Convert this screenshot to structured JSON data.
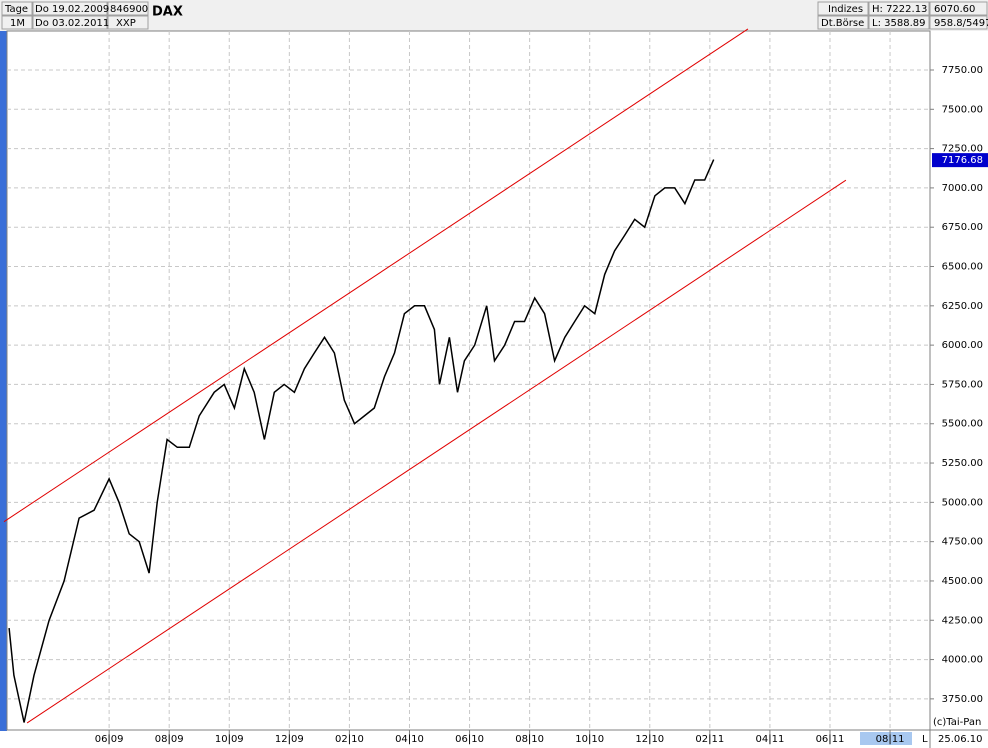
{
  "header": {
    "left": [
      "Tage",
      "1M"
    ],
    "dates": [
      "Do 19.02.2009",
      "Do 03.02.2011"
    ],
    "codes": [
      "846900",
      "XXP"
    ],
    "name": "DAX",
    "right": [
      "Indizes",
      "Dt.Börse"
    ],
    "hl": [
      "H: 7222.13",
      "L: 3588.89"
    ],
    "extra": [
      "6070.60",
      "958.8/5497"
    ]
  },
  "footer": {
    "copyright": "(c)Tai-Pan",
    "mode": "L",
    "date": "25.06.10"
  },
  "chart_data": {
    "type": "line",
    "color": "#000000",
    "grid": true,
    "series": [
      {
        "name": "DAX",
        "color": "#000000",
        "x": [
          1.67,
          1.83,
          2.17,
          2.5,
          3,
          3.5,
          4,
          4.5,
          5,
          5.33,
          5.67,
          6,
          6.33,
          6.6,
          6.93,
          7.27,
          7.67,
          8,
          8.5,
          8.83,
          9.17,
          9.5,
          9.83,
          10.17,
          10.5,
          10.83,
          11.17,
          11.5,
          11.83,
          12.17,
          12.5,
          12.83,
          13.17,
          13.5,
          13.83,
          14.17,
          14.5,
          14.83,
          15.17,
          15.5,
          15.83,
          16,
          16.33,
          16.6,
          16.83,
          17.17,
          17.57,
          17.83,
          18.17,
          18.5,
          18.83,
          19.17,
          19.5,
          19.83,
          20.17,
          20.5,
          20.83,
          21.17,
          21.5,
          21.83,
          22.17,
          22.5,
          22.83,
          23.17,
          23.5,
          23.83,
          24.17,
          24.5,
          24.83,
          25.13
        ],
        "values": [
          4200,
          3900,
          3600,
          3900,
          4250,
          4500,
          4900,
          4950,
          5150,
          5000,
          4800,
          4750,
          4550,
          5000,
          5400,
          5350,
          5350,
          5550,
          5700,
          5750,
          5600,
          5850,
          5700,
          5400,
          5700,
          5750,
          5700,
          5850,
          5950,
          6050,
          5950,
          5650,
          5500,
          5550,
          5600,
          5800,
          5950,
          6200,
          6250,
          6250,
          6100,
          5750,
          6050,
          5700,
          5900,
          6000,
          6250,
          5900,
          6000,
          6150,
          6150,
          6300,
          6200,
          5900,
          6050,
          6150,
          6250,
          6200,
          6450,
          6600,
          6700,
          6800,
          6750,
          6950,
          7000,
          7000,
          6900,
          7050,
          7050,
          7180
        ]
      }
    ],
    "channel": [
      {
        "color": "#e00000",
        "x": [
          1.5,
          26.27
        ],
        "y": [
          4877,
          8011
        ]
      },
      {
        "color": "#e00000",
        "x": [
          2.27,
          29.53
        ],
        "y": [
          3597,
          7049
        ]
      }
    ],
    "last_value": 7176.68,
    "last_color": "#0000cc",
    "xlim": [
      1.6,
      32.33
    ],
    "ylim": [
      3552,
      7998
    ],
    "xticks": [
      {
        "value": 5,
        "label": "06|09"
      },
      {
        "value": 7,
        "label": "08|09"
      },
      {
        "value": 9,
        "label": "10|09"
      },
      {
        "value": 11,
        "label": "12|09"
      },
      {
        "value": 13,
        "label": "02|10"
      },
      {
        "value": 15,
        "label": "04|10"
      },
      {
        "value": 17,
        "label": "06|10"
      },
      {
        "value": 19,
        "label": "08|10"
      },
      {
        "value": 21,
        "label": "10|10"
      },
      {
        "value": 23,
        "label": "12|10"
      },
      {
        "value": 25,
        "label": "02|11"
      },
      {
        "value": 27,
        "label": "04|11"
      },
      {
        "value": 29,
        "label": "06|11"
      },
      {
        "value": 31,
        "label": "08|11"
      }
    ],
    "yticks": [
      {
        "value": 3750,
        "label": "3750.00"
      },
      {
        "value": 4000,
        "label": "4000.00"
      },
      {
        "value": 4250,
        "label": "4250.00"
      },
      {
        "value": 4500,
        "label": "4500.00"
      },
      {
        "value": 4750,
        "label": "4750.00"
      },
      {
        "value": 5000,
        "label": "5000.00"
      },
      {
        "value": 5250,
        "label": "5250.00"
      },
      {
        "value": 5500,
        "label": "5500.00"
      },
      {
        "value": 5750,
        "label": "5750.00"
      },
      {
        "value": 6000,
        "label": "6000.00"
      },
      {
        "value": 6250,
        "label": "6250.00"
      },
      {
        "value": 6500,
        "label": "6500.00"
      },
      {
        "value": 6750,
        "label": "6750.00"
      },
      {
        "value": 7000,
        "label": "7000.00"
      },
      {
        "value": 7250,
        "label": "7250.00"
      },
      {
        "value": 7500,
        "label": "7500.00"
      },
      {
        "value": 7750,
        "label": "7750.00"
      }
    ]
  }
}
